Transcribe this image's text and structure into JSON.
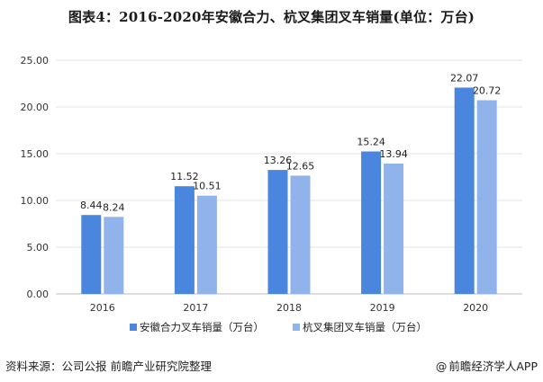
{
  "chart_data": {
    "type": "bar",
    "title": "图表4：2016-2020年安徽合力、杭叉集团叉车销量(单位：万台)",
    "categories": [
      "2016",
      "2017",
      "2018",
      "2019",
      "2020"
    ],
    "series": [
      {
        "name": "安徽合力叉车销量（万台）",
        "values": [
          8.44,
          11.52,
          13.26,
          15.24,
          22.07
        ],
        "color": "#4a86dd"
      },
      {
        "name": "杭叉集团叉车销量（万台）",
        "values": [
          8.24,
          10.51,
          12.65,
          13.94,
          20.72
        ],
        "color": "#8fb3ea"
      }
    ],
    "ylim": [
      0,
      25
    ],
    "yticks": [
      "0.00",
      "5.00",
      "10.00",
      "15.00",
      "20.00",
      "25.00"
    ],
    "ytick_values": [
      0,
      5,
      10,
      15,
      20,
      25
    ],
    "grid": true,
    "legend_position": "bottom"
  },
  "footer": {
    "source": "资料来源：公司公报 前瞻产业研究院整理",
    "brand": "前瞻经济学人APP",
    "brand_prefix": "@"
  }
}
